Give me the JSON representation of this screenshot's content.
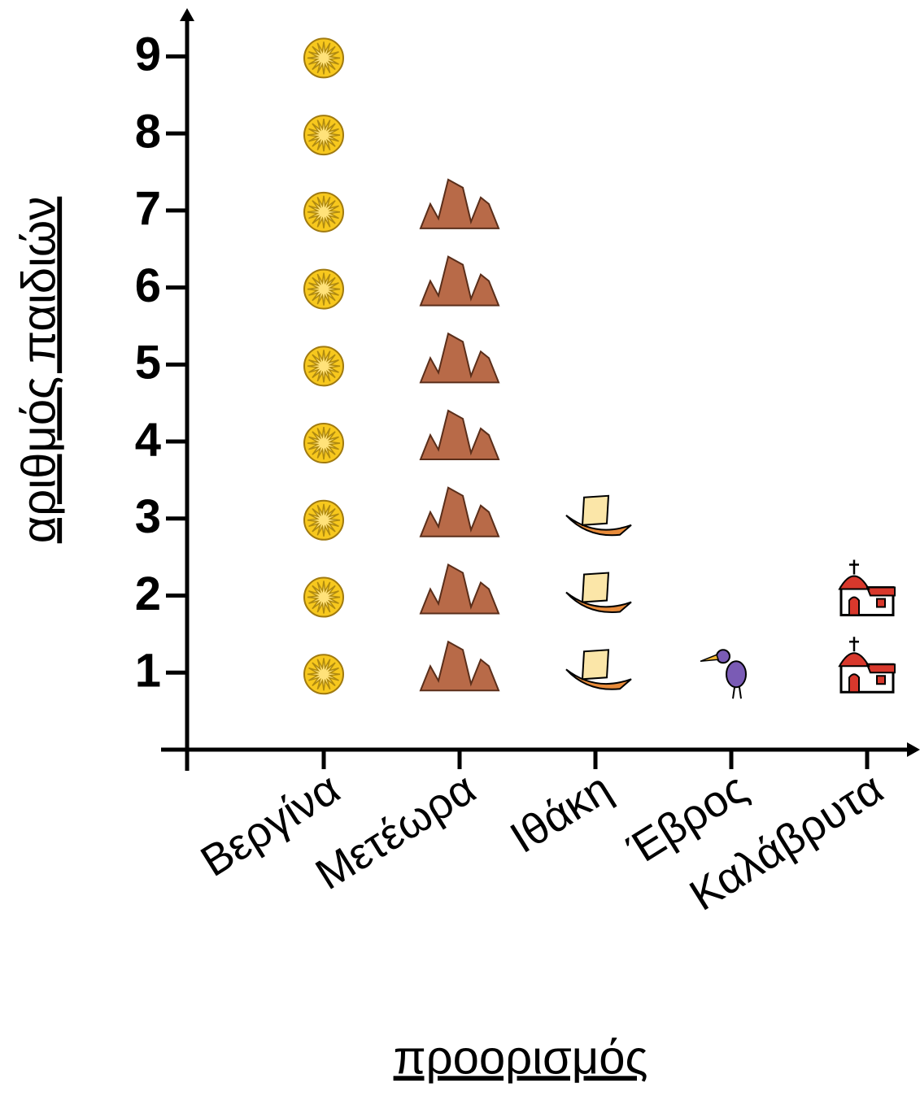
{
  "chart_data": {
    "type": "pictograph",
    "categories": [
      "Βεργίνα",
      "Μετέωρα",
      "Ιθάκη",
      "Έβρος",
      "Καλάβρυτα"
    ],
    "values": [
      9,
      7,
      3,
      1,
      2
    ],
    "colors": [
      "#f7c81e",
      "#b86a48",
      "#e88b3a",
      "#7a5bb5",
      "#d8382c"
    ],
    "ylim": [
      0,
      9.5
    ],
    "yticks": [
      1,
      2,
      3,
      4,
      5,
      6,
      7,
      8,
      9
    ],
    "x_label": "προορισμός",
    "y_label": "αριθμός παιδιών"
  }
}
